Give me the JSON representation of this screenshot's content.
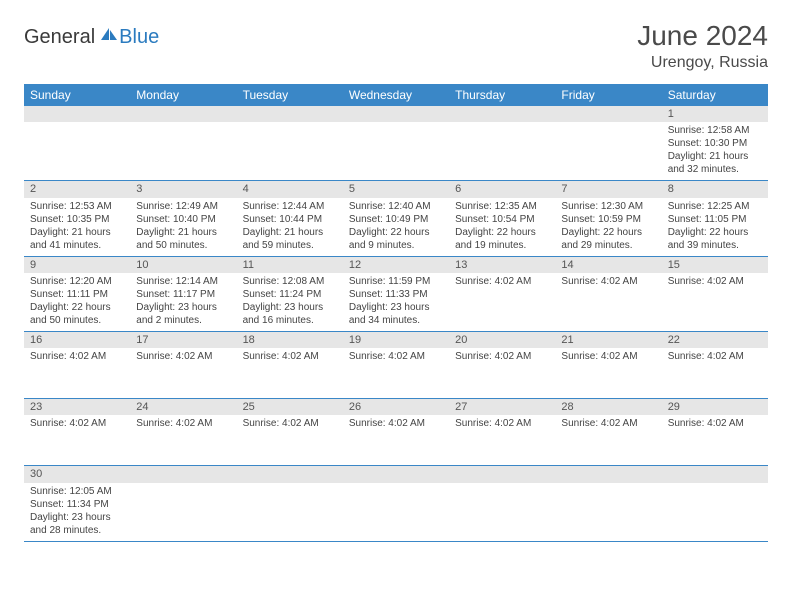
{
  "logo": {
    "part1": "General",
    "part2": "Blue"
  },
  "title": "June 2024",
  "location": "Urengoy, Russia",
  "colors": {
    "header_bg": "#3a87c7",
    "header_text": "#ffffff",
    "daynum_bg": "#e6e6e6",
    "border": "#3a87c7",
    "text": "#444444",
    "logo_blue": "#2b7bbf"
  },
  "dayHeaders": [
    "Sunday",
    "Monday",
    "Tuesday",
    "Wednesday",
    "Thursday",
    "Friday",
    "Saturday"
  ],
  "weeks": [
    [
      {
        "n": "",
        "lines": []
      },
      {
        "n": "",
        "lines": []
      },
      {
        "n": "",
        "lines": []
      },
      {
        "n": "",
        "lines": []
      },
      {
        "n": "",
        "lines": []
      },
      {
        "n": "",
        "lines": []
      },
      {
        "n": "1",
        "lines": [
          "Sunrise: 12:58 AM",
          "Sunset: 10:30 PM",
          "Daylight: 21 hours",
          "and 32 minutes."
        ]
      }
    ],
    [
      {
        "n": "2",
        "lines": [
          "Sunrise: 12:53 AM",
          "Sunset: 10:35 PM",
          "Daylight: 21 hours",
          "and 41 minutes."
        ]
      },
      {
        "n": "3",
        "lines": [
          "Sunrise: 12:49 AM",
          "Sunset: 10:40 PM",
          "Daylight: 21 hours",
          "and 50 minutes."
        ]
      },
      {
        "n": "4",
        "lines": [
          "Sunrise: 12:44 AM",
          "Sunset: 10:44 PM",
          "Daylight: 21 hours",
          "and 59 minutes."
        ]
      },
      {
        "n": "5",
        "lines": [
          "Sunrise: 12:40 AM",
          "Sunset: 10:49 PM",
          "Daylight: 22 hours",
          "and 9 minutes."
        ]
      },
      {
        "n": "6",
        "lines": [
          "Sunrise: 12:35 AM",
          "Sunset: 10:54 PM",
          "Daylight: 22 hours",
          "and 19 minutes."
        ]
      },
      {
        "n": "7",
        "lines": [
          "Sunrise: 12:30 AM",
          "Sunset: 10:59 PM",
          "Daylight: 22 hours",
          "and 29 minutes."
        ]
      },
      {
        "n": "8",
        "lines": [
          "Sunrise: 12:25 AM",
          "Sunset: 11:05 PM",
          "Daylight: 22 hours",
          "and 39 minutes."
        ]
      }
    ],
    [
      {
        "n": "9",
        "lines": [
          "Sunrise: 12:20 AM",
          "Sunset: 11:11 PM",
          "Daylight: 22 hours",
          "and 50 minutes."
        ]
      },
      {
        "n": "10",
        "lines": [
          "Sunrise: 12:14 AM",
          "Sunset: 11:17 PM",
          "Daylight: 23 hours",
          "and 2 minutes."
        ]
      },
      {
        "n": "11",
        "lines": [
          "Sunrise: 12:08 AM",
          "Sunset: 11:24 PM",
          "Daylight: 23 hours",
          "and 16 minutes."
        ]
      },
      {
        "n": "12",
        "lines": [
          "Sunrise: 11:59 PM",
          "Sunset: 11:33 PM",
          "Daylight: 23 hours",
          "and 34 minutes."
        ]
      },
      {
        "n": "13",
        "lines": [
          "Sunrise: 4:02 AM"
        ]
      },
      {
        "n": "14",
        "lines": [
          "Sunrise: 4:02 AM"
        ]
      },
      {
        "n": "15",
        "lines": [
          "Sunrise: 4:02 AM"
        ]
      }
    ],
    [
      {
        "n": "16",
        "lines": [
          "Sunrise: 4:02 AM"
        ]
      },
      {
        "n": "17",
        "lines": [
          "Sunrise: 4:02 AM"
        ]
      },
      {
        "n": "18",
        "lines": [
          "Sunrise: 4:02 AM"
        ]
      },
      {
        "n": "19",
        "lines": [
          "Sunrise: 4:02 AM"
        ]
      },
      {
        "n": "20",
        "lines": [
          "Sunrise: 4:02 AM"
        ]
      },
      {
        "n": "21",
        "lines": [
          "Sunrise: 4:02 AM"
        ]
      },
      {
        "n": "22",
        "lines": [
          "Sunrise: 4:02 AM"
        ]
      }
    ],
    [
      {
        "n": "23",
        "lines": [
          "Sunrise: 4:02 AM"
        ]
      },
      {
        "n": "24",
        "lines": [
          "Sunrise: 4:02 AM"
        ]
      },
      {
        "n": "25",
        "lines": [
          "Sunrise: 4:02 AM"
        ]
      },
      {
        "n": "26",
        "lines": [
          "Sunrise: 4:02 AM"
        ]
      },
      {
        "n": "27",
        "lines": [
          "Sunrise: 4:02 AM"
        ]
      },
      {
        "n": "28",
        "lines": [
          "Sunrise: 4:02 AM"
        ]
      },
      {
        "n": "29",
        "lines": [
          "Sunrise: 4:02 AM"
        ]
      }
    ],
    [
      {
        "n": "30",
        "lines": [
          "Sunrise: 12:05 AM",
          "Sunset: 11:34 PM",
          "Daylight: 23 hours",
          "and 28 minutes."
        ]
      },
      {
        "n": "",
        "lines": []
      },
      {
        "n": "",
        "lines": []
      },
      {
        "n": "",
        "lines": []
      },
      {
        "n": "",
        "lines": []
      },
      {
        "n": "",
        "lines": []
      },
      {
        "n": "",
        "lines": []
      }
    ]
  ]
}
